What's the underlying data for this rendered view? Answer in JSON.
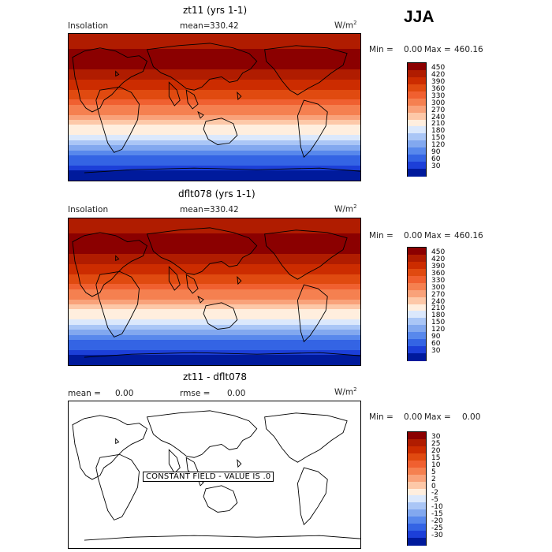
{
  "season": "JJA",
  "unit": "W/m",
  "unit_sup": "2",
  "panels": [
    {
      "title": "zt11 (yrs 1-1)",
      "left_label": "Insolation",
      "stat_label": "mean=",
      "stat_value": "330.42",
      "stat2_label": "",
      "stat2_value": "",
      "minmax": {
        "min_label": "Min =",
        "min": "0.00",
        "max_label": "Max =",
        "max": "460.16"
      },
      "colorbar": {
        "ticks": [
          "450",
          "420",
          "390",
          "360",
          "330",
          "300",
          "270",
          "240",
          "210",
          "180",
          "150",
          "120",
          "90",
          "60",
          "30"
        ],
        "colors": [
          "#8b0000",
          "#b01c00",
          "#cc2c00",
          "#e04a10",
          "#f06030",
          "#f58050",
          "#f9a27a",
          "#fdc8a8",
          "#ffeede",
          "#dbe8fc",
          "#aac6f6",
          "#82a8ef",
          "#5888ec",
          "#3464e4",
          "#1c3fd8",
          "#001a9c"
        ]
      },
      "chart_data": {
        "type": "heatmap",
        "title": "zt11 (yrs 1-1)",
        "field": "Insolation",
        "mean": 330.42,
        "min": 0.0,
        "max": 460.16,
        "lat_band_values_north_to_south": [
          420,
          430,
          440,
          450,
          455,
          460,
          455,
          445,
          430,
          415,
          400,
          380,
          360,
          340,
          320,
          300,
          280,
          255,
          230,
          210,
          185,
          160,
          135,
          110,
          85,
          60,
          35,
          15,
          0
        ],
        "levels": [
          30,
          60,
          90,
          120,
          150,
          180,
          210,
          240,
          270,
          300,
          330,
          360,
          390,
          420,
          450
        ]
      }
    },
    {
      "title": "dflt078 (yrs 1-1)",
      "left_label": "Insolation",
      "stat_label": "mean=",
      "stat_value": "330.42",
      "stat2_label": "",
      "stat2_value": "",
      "minmax": {
        "min_label": "Min =",
        "min": "0.00",
        "max_label": "Max =",
        "max": "460.16"
      },
      "colorbar": {
        "ticks": [
          "450",
          "420",
          "390",
          "360",
          "330",
          "300",
          "270",
          "240",
          "210",
          "180",
          "150",
          "120",
          "90",
          "60",
          "30"
        ],
        "colors": [
          "#8b0000",
          "#b01c00",
          "#cc2c00",
          "#e04a10",
          "#f06030",
          "#f58050",
          "#f9a27a",
          "#fdc8a8",
          "#ffeede",
          "#dbe8fc",
          "#aac6f6",
          "#82a8ef",
          "#5888ec",
          "#3464e4",
          "#1c3fd8",
          "#001a9c"
        ]
      },
      "chart_data": {
        "type": "heatmap",
        "title": "dflt078 (yrs 1-1)",
        "field": "Insolation",
        "mean": 330.42,
        "min": 0.0,
        "max": 460.16,
        "lat_band_values_north_to_south": [
          420,
          430,
          440,
          450,
          455,
          460,
          455,
          445,
          430,
          415,
          400,
          380,
          360,
          340,
          320,
          300,
          280,
          255,
          230,
          210,
          185,
          160,
          135,
          110,
          85,
          60,
          35,
          15,
          0
        ],
        "levels": [
          30,
          60,
          90,
          120,
          150,
          180,
          210,
          240,
          270,
          300,
          330,
          360,
          390,
          420,
          450
        ]
      }
    },
    {
      "title": "zt11 - dflt078",
      "left_label": "mean =",
      "stat_label": "",
      "stat_value": "0.00",
      "stat2_label": "rmse =",
      "stat2_value": "0.00",
      "minmax": {
        "min_label": "Min =",
        "min": "0.00",
        "max_label": "Max =",
        "max": "0.00"
      },
      "constant_text": "CONSTANT FIELD - VALUE IS .0",
      "colorbar": {
        "ticks": [
          "30",
          "25",
          "20",
          "15",
          "10",
          "5",
          "2",
          "0",
          "-2",
          "-5",
          "-10",
          "-15",
          "-20",
          "-25",
          "-30"
        ],
        "colors": [
          "#8b0000",
          "#b01c00",
          "#cc2c00",
          "#e04a10",
          "#f06030",
          "#f58050",
          "#f9a27a",
          "#fdc8a8",
          "#ffeede",
          "#dbe8fc",
          "#aac6f6",
          "#82a8ef",
          "#5888ec",
          "#3464e4",
          "#1c3fd8",
          "#001a9c"
        ]
      },
      "chart_data": {
        "type": "heatmap",
        "title": "zt11 - dflt078",
        "mean": 0.0,
        "rmse": 0.0,
        "min": 0.0,
        "max": 0.0,
        "levels": [
          -30,
          -25,
          -20,
          -15,
          -10,
          -5,
          -2,
          0,
          2,
          5,
          10,
          15,
          20,
          25,
          30
        ]
      }
    }
  ]
}
